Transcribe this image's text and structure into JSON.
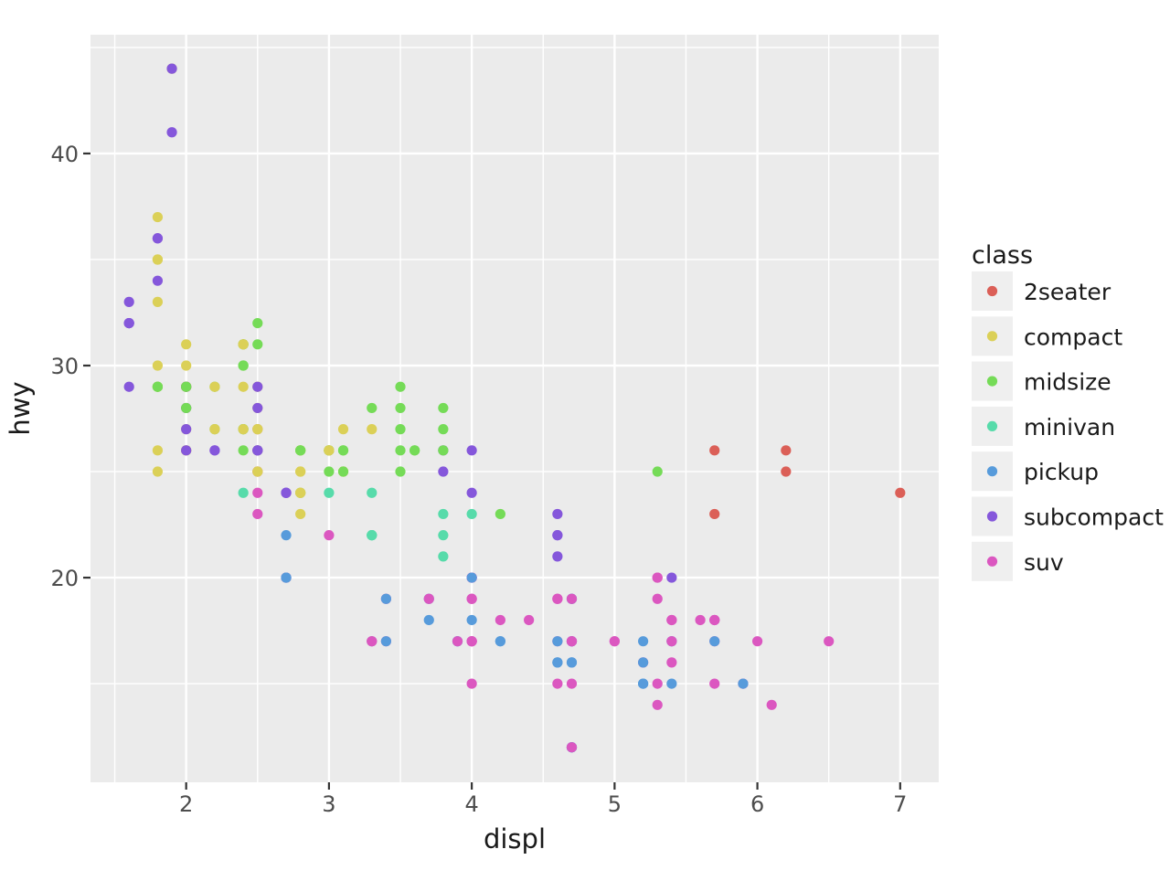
{
  "chart_data": {
    "type": "scatter",
    "title": "",
    "xlabel": "displ",
    "ylabel": "hwy",
    "legend_title": "class",
    "legend_position": "right",
    "grid": true,
    "panel_background": "#ebebeb",
    "grid_color": "#ffffff",
    "legend_key_background": "#efefef",
    "tick_color": "#333333",
    "tick_label_color": "#4d4d4d",
    "xlim": [
      1.33,
      7.27
    ],
    "ylim": [
      10.35,
      45.6
    ],
    "x_ticks": [
      2,
      3,
      4,
      5,
      6,
      7
    ],
    "y_ticks": [
      20,
      30,
      40
    ],
    "x_minor_ticks": [
      1.5,
      2.5,
      3.5,
      4.5,
      5.5,
      6.5
    ],
    "y_minor_ticks": [
      15,
      25,
      35,
      45
    ],
    "classes": [
      {
        "name": "2seater",
        "color": "#db5f57"
      },
      {
        "name": "compact",
        "color": "#dbd057"
      },
      {
        "name": "midsize",
        "color": "#75db57"
      },
      {
        "name": "minivan",
        "color": "#57dbaa"
      },
      {
        "name": "pickup",
        "color": "#579bdb"
      },
      {
        "name": "subcompact",
        "color": "#8557db"
      },
      {
        "name": "suv",
        "color": "#db57c0"
      }
    ],
    "points": [
      [
        1.8,
        29,
        1
      ],
      [
        1.8,
        29,
        1
      ],
      [
        2.0,
        31,
        1
      ],
      [
        2.0,
        30,
        1
      ],
      [
        2.8,
        26,
        1
      ],
      [
        2.8,
        26,
        1
      ],
      [
        3.1,
        27,
        1
      ],
      [
        1.8,
        26,
        1
      ],
      [
        1.8,
        25,
        1
      ],
      [
        2.0,
        28,
        1
      ],
      [
        2.0,
        27,
        1
      ],
      [
        2.8,
        25,
        1
      ],
      [
        2.8,
        25,
        1
      ],
      [
        3.1,
        25,
        1
      ],
      [
        3.1,
        25,
        1
      ],
      [
        2.8,
        24,
        2
      ],
      [
        3.1,
        25,
        2
      ],
      [
        4.2,
        23,
        2
      ],
      [
        5.3,
        20,
        6
      ],
      [
        5.3,
        15,
        6
      ],
      [
        5.3,
        20,
        6
      ],
      [
        5.7,
        17,
        6
      ],
      [
        6.0,
        17,
        6
      ],
      [
        5.7,
        26,
        0
      ],
      [
        5.7,
        23,
        0
      ],
      [
        6.2,
        26,
        0
      ],
      [
        6.2,
        25,
        0
      ],
      [
        7.0,
        24,
        0
      ],
      [
        5.3,
        19,
        6
      ],
      [
        5.3,
        14,
        6
      ],
      [
        5.7,
        15,
        6
      ],
      [
        6.5,
        17,
        6
      ],
      [
        2.4,
        27,
        2
      ],
      [
        2.4,
        30,
        2
      ],
      [
        3.1,
        26,
        2
      ],
      [
        3.5,
        29,
        2
      ],
      [
        3.6,
        26,
        2
      ],
      [
        2.4,
        24,
        3
      ],
      [
        3.0,
        24,
        3
      ],
      [
        3.3,
        22,
        3
      ],
      [
        3.3,
        22,
        3
      ],
      [
        3.3,
        17,
        3
      ],
      [
        3.3,
        24,
        3
      ],
      [
        3.3,
        22,
        3
      ],
      [
        3.8,
        21,
        3
      ],
      [
        3.8,
        22,
        3
      ],
      [
        3.8,
        23,
        3
      ],
      [
        4.0,
        23,
        3
      ],
      [
        3.7,
        19,
        4
      ],
      [
        3.7,
        18,
        4
      ],
      [
        3.9,
        17,
        4
      ],
      [
        3.9,
        17,
        4
      ],
      [
        4.7,
        19,
        4
      ],
      [
        4.7,
        19,
        4
      ],
      [
        4.7,
        12,
        4
      ],
      [
        5.2,
        17,
        4
      ],
      [
        5.2,
        15,
        4
      ],
      [
        3.9,
        17,
        6
      ],
      [
        4.7,
        17,
        6
      ],
      [
        4.7,
        12,
        6
      ],
      [
        4.7,
        17,
        6
      ],
      [
        5.2,
        16,
        6
      ],
      [
        5.7,
        18,
        6
      ],
      [
        5.9,
        15,
        6
      ],
      [
        4.7,
        16,
        4
      ],
      [
        4.7,
        12,
        4
      ],
      [
        4.7,
        17,
        4
      ],
      [
        4.7,
        17,
        4
      ],
      [
        4.7,
        16,
        4
      ],
      [
        4.7,
        12,
        4
      ],
      [
        5.2,
        15,
        4
      ],
      [
        5.2,
        16,
        4
      ],
      [
        5.7,
        17,
        4
      ],
      [
        5.9,
        15,
        4
      ],
      [
        4.6,
        17,
        6
      ],
      [
        5.4,
        17,
        6
      ],
      [
        5.4,
        18,
        6
      ],
      [
        4.0,
        17,
        6
      ],
      [
        4.0,
        17,
        6
      ],
      [
        4.0,
        17,
        6
      ],
      [
        4.0,
        19,
        6
      ],
      [
        4.6,
        19,
        6
      ],
      [
        5.0,
        17,
        6
      ],
      [
        4.2,
        17,
        4
      ],
      [
        4.2,
        17,
        4
      ],
      [
        4.6,
        16,
        4
      ],
      [
        4.6,
        16,
        4
      ],
      [
        4.6,
        17,
        4
      ],
      [
        5.4,
        15,
        4
      ],
      [
        5.4,
        17,
        4
      ],
      [
        3.8,
        26,
        5
      ],
      [
        3.8,
        25,
        5
      ],
      [
        4.0,
        26,
        5
      ],
      [
        4.0,
        24,
        5
      ],
      [
        4.6,
        21,
        5
      ],
      [
        4.6,
        22,
        5
      ],
      [
        4.6,
        23,
        5
      ],
      [
        4.6,
        22,
        5
      ],
      [
        5.4,
        20,
        5
      ],
      [
        1.6,
        33,
        5
      ],
      [
        1.6,
        32,
        5
      ],
      [
        1.6,
        32,
        5
      ],
      [
        1.6,
        29,
        5
      ],
      [
        1.6,
        32,
        5
      ],
      [
        1.8,
        34,
        5
      ],
      [
        1.8,
        36,
        5
      ],
      [
        1.8,
        36,
        5
      ],
      [
        2.0,
        29,
        5
      ],
      [
        2.4,
        26,
        2
      ],
      [
        2.4,
        27,
        2
      ],
      [
        2.4,
        30,
        2
      ],
      [
        2.4,
        31,
        2
      ],
      [
        2.5,
        26,
        2
      ],
      [
        2.5,
        26,
        2
      ],
      [
        3.3,
        28,
        2
      ],
      [
        2.0,
        26,
        5
      ],
      [
        2.0,
        29,
        5
      ],
      [
        2.0,
        28,
        5
      ],
      [
        2.0,
        27,
        5
      ],
      [
        2.7,
        24,
        5
      ],
      [
        2.7,
        24,
        5
      ],
      [
        2.7,
        24,
        5
      ],
      [
        3.0,
        22,
        6
      ],
      [
        3.7,
        19,
        6
      ],
      [
        4.0,
        20,
        6
      ],
      [
        4.7,
        17,
        6
      ],
      [
        4.7,
        12,
        6
      ],
      [
        4.7,
        19,
        6
      ],
      [
        5.7,
        18,
        6
      ],
      [
        6.1,
        14,
        6
      ],
      [
        4.0,
        15,
        6
      ],
      [
        4.2,
        18,
        6
      ],
      [
        4.4,
        18,
        6
      ],
      [
        4.6,
        15,
        6
      ],
      [
        5.4,
        17,
        6
      ],
      [
        5.4,
        16,
        6
      ],
      [
        5.4,
        18,
        6
      ],
      [
        4.0,
        17,
        6
      ],
      [
        4.0,
        19,
        6
      ],
      [
        4.6,
        19,
        6
      ],
      [
        5.0,
        17,
        6
      ],
      [
        2.4,
        29,
        1
      ],
      [
        2.4,
        27,
        1
      ],
      [
        2.5,
        31,
        2
      ],
      [
        2.5,
        32,
        2
      ],
      [
        3.5,
        27,
        2
      ],
      [
        3.5,
        26,
        2
      ],
      [
        3.0,
        26,
        2
      ],
      [
        3.0,
        25,
        2
      ],
      [
        3.5,
        25,
        2
      ],
      [
        3.3,
        17,
        6
      ],
      [
        3.3,
        17,
        6
      ],
      [
        4.0,
        20,
        6
      ],
      [
        5.6,
        18,
        6
      ],
      [
        3.1,
        26,
        2
      ],
      [
        3.8,
        26,
        2
      ],
      [
        3.8,
        27,
        2
      ],
      [
        3.8,
        28,
        2
      ],
      [
        5.3,
        25,
        2
      ],
      [
        2.5,
        25,
        6
      ],
      [
        2.5,
        24,
        6
      ],
      [
        2.5,
        27,
        6
      ],
      [
        2.5,
        25,
        6
      ],
      [
        2.5,
        26,
        6
      ],
      [
        2.5,
        23,
        6
      ],
      [
        2.2,
        26,
        5
      ],
      [
        2.2,
        26,
        5
      ],
      [
        2.5,
        26,
        5
      ],
      [
        2.5,
        26,
        5
      ],
      [
        2.5,
        25,
        1
      ],
      [
        2.5,
        27,
        1
      ],
      [
        2.5,
        25,
        1
      ],
      [
        2.5,
        27,
        1
      ],
      [
        2.7,
        20,
        6
      ],
      [
        2.7,
        20,
        6
      ],
      [
        3.4,
        19,
        6
      ],
      [
        3.4,
        17,
        6
      ],
      [
        4.0,
        20,
        6
      ],
      [
        4.7,
        17,
        6
      ],
      [
        2.2,
        29,
        2
      ],
      [
        2.2,
        27,
        2
      ],
      [
        2.4,
        31,
        2
      ],
      [
        2.4,
        31,
        2
      ],
      [
        3.0,
        26,
        2
      ],
      [
        3.0,
        26,
        2
      ],
      [
        3.5,
        28,
        2
      ],
      [
        2.2,
        27,
        1
      ],
      [
        2.2,
        29,
        1
      ],
      [
        2.4,
        31,
        1
      ],
      [
        2.4,
        31,
        1
      ],
      [
        3.0,
        26,
        1
      ],
      [
        3.0,
        26,
        1
      ],
      [
        3.3,
        27,
        1
      ],
      [
        1.8,
        30,
        1
      ],
      [
        1.8,
        33,
        1
      ],
      [
        1.8,
        35,
        1
      ],
      [
        1.8,
        37,
        1
      ],
      [
        1.8,
        35,
        1
      ],
      [
        4.7,
        15,
        6
      ],
      [
        5.7,
        18,
        6
      ],
      [
        2.7,
        20,
        4
      ],
      [
        2.7,
        20,
        4
      ],
      [
        2.7,
        22,
        4
      ],
      [
        3.4,
        17,
        4
      ],
      [
        3.4,
        19,
        4
      ],
      [
        4.0,
        18,
        4
      ],
      [
        4.0,
        20,
        4
      ],
      [
        2.0,
        29,
        1
      ],
      [
        2.0,
        26,
        1
      ],
      [
        2.0,
        29,
        1
      ],
      [
        2.0,
        29,
        1
      ],
      [
        2.8,
        24,
        1
      ],
      [
        1.9,
        44,
        1
      ],
      [
        2.0,
        29,
        1
      ],
      [
        2.0,
        26,
        1
      ],
      [
        2.0,
        29,
        1
      ],
      [
        2.0,
        29,
        1
      ],
      [
        2.5,
        28,
        1
      ],
      [
        2.5,
        29,
        1
      ],
      [
        2.8,
        23,
        1
      ],
      [
        2.8,
        24,
        1
      ],
      [
        1.9,
        44,
        5
      ],
      [
        1.9,
        41,
        5
      ],
      [
        2.0,
        29,
        5
      ],
      [
        2.0,
        26,
        5
      ],
      [
        2.5,
        28,
        5
      ],
      [
        2.5,
        29,
        5
      ],
      [
        1.8,
        29,
        2
      ],
      [
        1.8,
        29,
        2
      ],
      [
        2.0,
        28,
        2
      ],
      [
        2.0,
        29,
        2
      ],
      [
        2.8,
        26,
        2
      ],
      [
        2.8,
        26,
        2
      ],
      [
        3.6,
        26,
        2
      ]
    ]
  }
}
